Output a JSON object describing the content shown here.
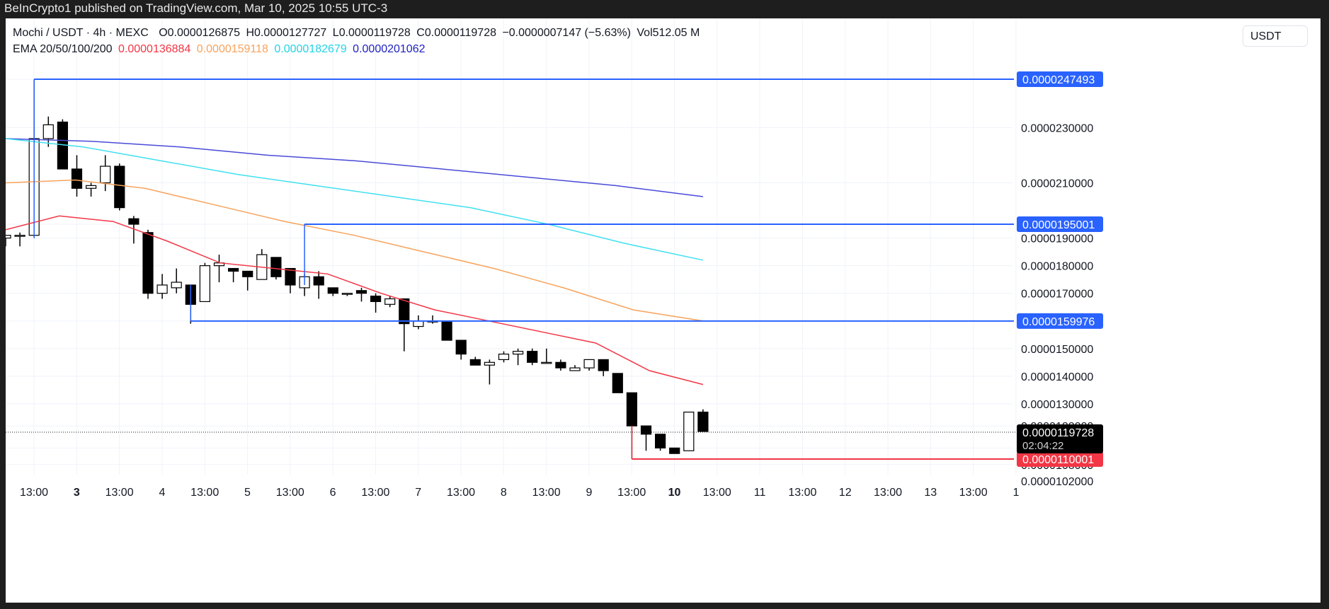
{
  "header": {
    "published": "BeInCrypto1 published on TradingView.com, Mar 10, 2025 10:55 UTC-3"
  },
  "legend": {
    "symbol": "Mochi / USDT · 4h · MEXC",
    "o_label": "O",
    "o": "0.0000126875",
    "h_label": "H",
    "h": "0.0000127727",
    "l_label": "L",
    "l": "0.0000119728",
    "c_label": "C",
    "c": "0.0000119728",
    "change": "−0.0000007147 (−5.63%)",
    "vol_label": "Vol",
    "vol": "512.05 M",
    "ema_label": "EMA 20/50/100/200",
    "ema20": "0.0000136884",
    "ema50": "0.0000159118",
    "ema100": "0.0000182679",
    "ema200": "0.0000201062"
  },
  "currency_button": "USDT",
  "colors": {
    "up_body": "#ffffff",
    "down_body": "#000000",
    "wick": "#000000",
    "ema20": "#f23645",
    "ema50": "#f7a35c",
    "ema100": "#40e0f0",
    "ema200": "#4a4ad8",
    "level": "#2962ff",
    "support": "#f23645",
    "price_badge": "#000000"
  },
  "current_price": {
    "value": "0.0000119728",
    "countdown": "02:04:22"
  },
  "chart_data": {
    "type": "candlestick",
    "y_axis": {
      "ticks": [
        "0.0000230000",
        "0.0000210000",
        "0.0000190000",
        "0.0000180000",
        "0.0000170000",
        "0.0000150000",
        "0.0000140000",
        "0.0000130000",
        "0.0000122000",
        "0.0000114000",
        "0.0000108000",
        "0.0000102000"
      ],
      "ylim": [
        1.02e-05,
        2.48e-05
      ]
    },
    "x_axis": {
      "ticks": [
        {
          "label": "13:00",
          "bold": false
        },
        {
          "label": "3",
          "bold": true
        },
        {
          "label": "13:00",
          "bold": false
        },
        {
          "label": "4",
          "bold": false
        },
        {
          "label": "13:00",
          "bold": false
        },
        {
          "label": "5",
          "bold": false
        },
        {
          "label": "13:00",
          "bold": false
        },
        {
          "label": "6",
          "bold": false
        },
        {
          "label": "13:00",
          "bold": false
        },
        {
          "label": "7",
          "bold": false
        },
        {
          "label": "13:00",
          "bold": false
        },
        {
          "label": "8",
          "bold": false
        },
        {
          "label": "13:00",
          "bold": false
        },
        {
          "label": "9",
          "bold": false
        },
        {
          "label": "13:00",
          "bold": false
        },
        {
          "label": "10",
          "bold": true
        },
        {
          "label": "13:00",
          "bold": false
        },
        {
          "label": "11",
          "bold": false
        },
        {
          "label": "13:00",
          "bold": false
        },
        {
          "label": "12",
          "bold": false
        },
        {
          "label": "13:00",
          "bold": false
        },
        {
          "label": "13",
          "bold": false
        },
        {
          "label": "13:00",
          "bold": false
        },
        {
          "label": "1",
          "bold": false
        }
      ]
    },
    "candles": [
      [
        19.0,
        19.1,
        18.7,
        19.1
      ],
      [
        19.1,
        19.2,
        18.7,
        19.1
      ],
      [
        19.1,
        24.7,
        19.0,
        22.6
      ],
      [
        22.6,
        23.4,
        22.3,
        23.1
      ],
      [
        23.2,
        23.3,
        21.5,
        21.5
      ],
      [
        21.5,
        22.0,
        20.5,
        20.8
      ],
      [
        20.8,
        21.0,
        20.5,
        20.9
      ],
      [
        21.0,
        22.0,
        20.7,
        21.6
      ],
      [
        21.6,
        21.7,
        20.0,
        20.1
      ],
      [
        19.7,
        19.8,
        18.8,
        19.5
      ],
      [
        19.2,
        19.3,
        16.8,
        17.0
      ],
      [
        17.0,
        17.7,
        16.8,
        17.3
      ],
      [
        17.2,
        17.9,
        17.0,
        17.4
      ],
      [
        17.3,
        17.3,
        15.9,
        16.6
      ],
      [
        16.7,
        18.1,
        16.7,
        18.0
      ],
      [
        18.0,
        18.4,
        17.4,
        18.1
      ],
      [
        17.9,
        17.9,
        17.4,
        17.8
      ],
      [
        17.8,
        17.8,
        17.1,
        17.6
      ],
      [
        17.5,
        18.6,
        17.5,
        18.4
      ],
      [
        18.3,
        18.3,
        17.5,
        17.6
      ],
      [
        17.9,
        17.9,
        17.0,
        17.3
      ],
      [
        17.2,
        17.7,
        16.9,
        17.6
      ],
      [
        17.6,
        17.8,
        16.8,
        17.3
      ],
      [
        17.2,
        17.2,
        16.9,
        17.0
      ],
      [
        17.0,
        17.0,
        16.9,
        17.0
      ],
      [
        17.1,
        17.2,
        16.7,
        17.0
      ],
      [
        16.9,
        17.0,
        16.3,
        16.7
      ],
      [
        16.6,
        16.9,
        16.5,
        16.8
      ],
      [
        16.8,
        16.8,
        14.9,
        15.9
      ],
      [
        15.8,
        16.2,
        15.7,
        16.0
      ],
      [
        16.0,
        16.2,
        15.9,
        16.0
      ],
      [
        16.0,
        16.0,
        15.3,
        15.3
      ],
      [
        15.3,
        15.3,
        14.6,
        14.8
      ],
      [
        14.6,
        14.7,
        14.4,
        14.4
      ],
      [
        14.4,
        14.6,
        13.7,
        14.5
      ],
      [
        14.6,
        14.9,
        14.5,
        14.8
      ],
      [
        14.8,
        15.0,
        14.4,
        14.9
      ],
      [
        14.9,
        15.0,
        14.4,
        14.5
      ],
      [
        14.5,
        15.0,
        14.5,
        14.5
      ],
      [
        14.5,
        14.6,
        14.2,
        14.3
      ],
      [
        14.2,
        14.4,
        14.2,
        14.3
      ],
      [
        14.3,
        14.6,
        14.2,
        14.6
      ],
      [
        14.6,
        14.6,
        14.0,
        14.2
      ],
      [
        14.1,
        14.1,
        13.4,
        13.4
      ],
      [
        13.4,
        13.4,
        11.0,
        12.2
      ],
      [
        12.2,
        12.2,
        11.3,
        11.9
      ],
      [
        11.9,
        11.9,
        11.3,
        11.4
      ],
      [
        11.4,
        11.4,
        11.2,
        11.2
      ],
      [
        11.3,
        12.7,
        11.3,
        12.7
      ],
      [
        12.7,
        12.8,
        12.0,
        12.0
      ]
    ],
    "candles_note": "open, high, low, close in units of 0.000001 USDT",
    "ema": {
      "ema200": [
        22.6,
        22.5,
        22.3,
        22.0,
        21.8,
        21.5,
        21.2,
        20.9,
        20.5
      ],
      "ema100": [
        22.6,
        22.3,
        21.8,
        21.3,
        20.9,
        20.5,
        20.1,
        19.5,
        18.8,
        18.2
      ],
      "ema50": [
        21.0,
        21.1,
        20.8,
        20.2,
        19.6,
        19.1,
        18.5,
        17.9,
        17.2,
        16.4,
        16.0
      ],
      "ema20": [
        19.3,
        19.8,
        19.6,
        18.9,
        18.1,
        17.9,
        17.7,
        17.0,
        16.4,
        16.0,
        15.6,
        15.2,
        14.2,
        13.7
      ]
    },
    "horizontal_levels": [
      {
        "value": "0.0000247493",
        "kind": "resistance"
      },
      {
        "value": "0.0000195001",
        "kind": "resistance"
      },
      {
        "value": "0.0000159976",
        "kind": "resistance"
      },
      {
        "value": "0.0000110001",
        "kind": "support"
      }
    ]
  }
}
